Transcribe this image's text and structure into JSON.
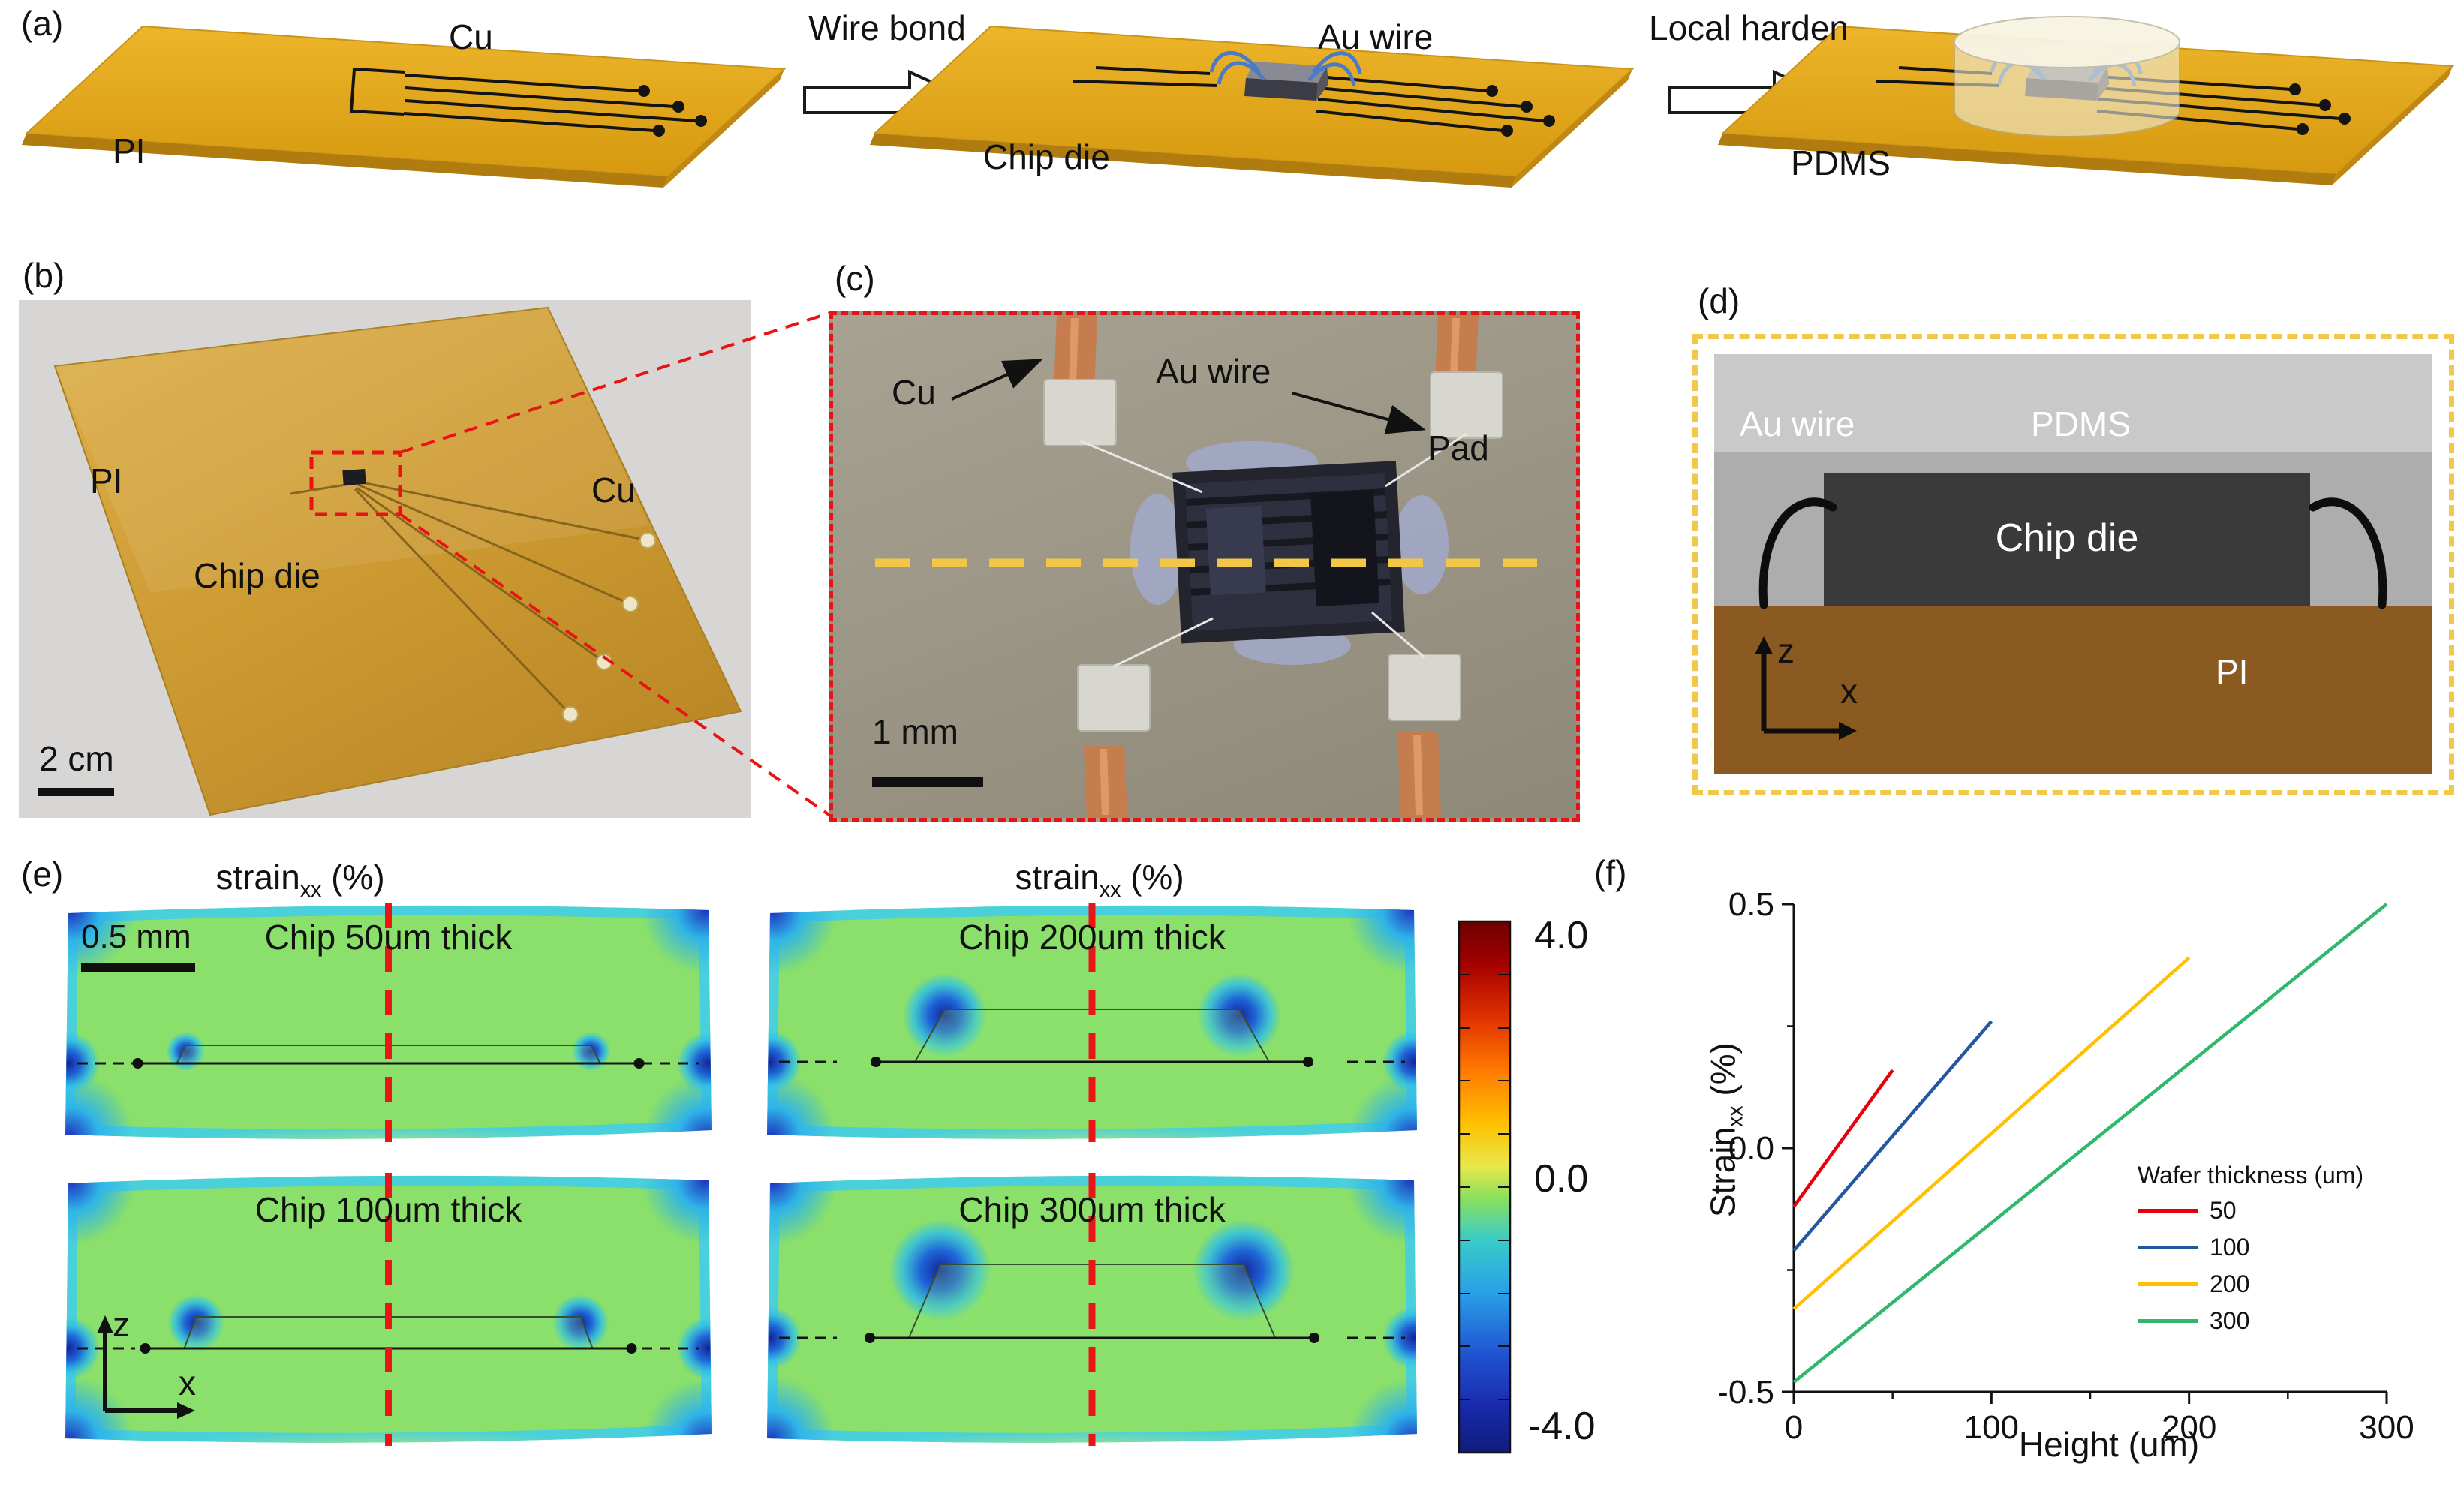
{
  "figure": {
    "panels": {
      "a": {
        "label": "(a)",
        "pi": "PI",
        "cu": "Cu",
        "step1": "Wire bond",
        "chip": "Chip die",
        "au": "Au wire",
        "step2": "Local harden",
        "pdms": "PDMS"
      },
      "b": {
        "label": "(b)",
        "pi": "PI",
        "cu": "Cu",
        "chip": "Chip die",
        "scalebar": "2 cm"
      },
      "c": {
        "label": "(c)",
        "cu": "Cu",
        "au": "Au wire",
        "pad": "Pad",
        "scalebar": "1 mm"
      },
      "d": {
        "label": "(d)",
        "au": "Au wire",
        "pdms": "PDMS",
        "chip": "Chip die",
        "pi": "PI",
        "axis_z": "z",
        "axis_x": "x"
      },
      "e": {
        "label": "(e)",
        "title_word": "strain",
        "title_sub": "xx",
        "title_unit": " (%)",
        "scalebar": "0.5 mm",
        "captions": [
          "Chip 50um thick",
          "Chip 200um thick",
          "Chip 100um thick",
          "Chip 300um thick"
        ],
        "colorbar_max": "4.0",
        "colorbar_mid": "0.0",
        "colorbar_min": "-4.0",
        "axis_z": "z",
        "axis_x": "x"
      },
      "f": {
        "label": "(f)",
        "ylabel_word": "Strain",
        "ylabel_sub": "xx",
        "ylabel_unit": " (%)"
      }
    }
  },
  "chart_data": {
    "type": "line",
    "title": "",
    "xlabel": "Height (um)",
    "ylabel": "Strain_xx (%)",
    "xlim": [
      0,
      300
    ],
    "ylim": [
      -0.5,
      0.5
    ],
    "xticks": [
      "0",
      "100",
      "200",
      "300"
    ],
    "yticks": [
      "0.5",
      "0.0",
      "-0.5"
    ],
    "grid": false,
    "legend_title": "Wafer thickness (um)",
    "legend_position": "center-right",
    "series": [
      {
        "name": "50",
        "color": "#e8000d",
        "points": [
          [
            0,
            -0.12
          ],
          [
            50,
            0.16
          ]
        ]
      },
      {
        "name": "100",
        "color": "#2457a0",
        "points": [
          [
            0,
            -0.21
          ],
          [
            100,
            0.26
          ]
        ]
      },
      {
        "name": "200",
        "color": "#ffc000",
        "points": [
          [
            0,
            -0.33
          ],
          [
            200,
            0.39
          ]
        ]
      },
      {
        "name": "300",
        "color": "#2eb86b",
        "points": [
          [
            0,
            -0.48
          ],
          [
            300,
            0.5
          ]
        ]
      }
    ],
    "colorbar": {
      "max": 4.0,
      "mid": 0.0,
      "min": -4.0,
      "label": "strain_xx (%)"
    },
    "strain_maps": [
      {
        "chip_thickness_um": 50
      },
      {
        "chip_thickness_um": 200
      },
      {
        "chip_thickness_um": 100
      },
      {
        "chip_thickness_um": 300
      }
    ]
  }
}
